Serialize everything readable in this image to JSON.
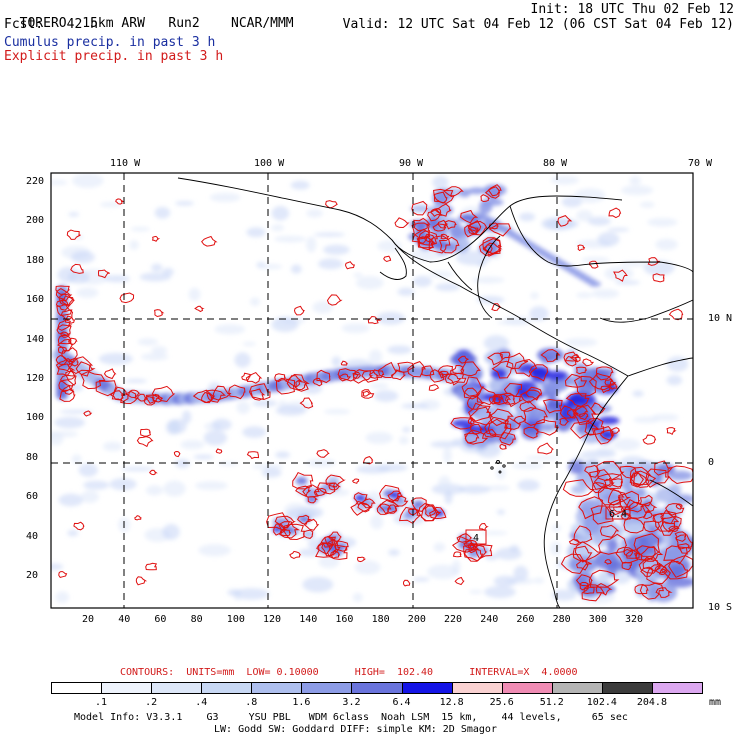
{
  "header": {
    "model": "TORERO",
    "resolution": "15km ARW",
    "run": "Run2",
    "org": "NCAR/MMM",
    "init": "Init: 18 UTC Thu 02 Feb 12",
    "fcst_label": "Fcst:",
    "fcst_value": "42 h",
    "valid": "Valid: 12 UTC Sat 04 Feb 12 (06 CST Sat 04 Feb 12)",
    "line_cumulus": "Cumulus precip. in past 3 h",
    "line_explicit": "Explicit precip. in past 3 h"
  },
  "map": {
    "lon_labels": [
      "110 W",
      "100 W",
      "90 W",
      "80 W",
      "70 W"
    ],
    "lat_labels": [
      "10 N",
      "0",
      "10 S"
    ],
    "grid_x_labels": [
      "20",
      "40",
      "60",
      "80",
      "100",
      "120",
      "140",
      "160",
      "180",
      "200",
      "220",
      "240",
      "260",
      "280",
      "300",
      "320"
    ],
    "grid_y_labels": [
      "220",
      "200",
      "180",
      "160",
      "140",
      "120",
      "100",
      "80",
      "60",
      "40",
      "20"
    ],
    "box_labels": [
      "4",
      "6.4"
    ]
  },
  "legend": {
    "contours_text": "CONTOURS:  UNITS=mm  LOW= 0.10000      HIGH=  102.40      INTERVAL=X  4.0000",
    "labels": [
      ".1",
      ".2",
      ".4",
      ".8",
      "1.6",
      "3.2",
      "6.4",
      "12.8",
      "25.6",
      "51.2",
      "102.4",
      "204.8"
    ],
    "unit": "mm",
    "colors": [
      "#ffffff",
      "#eef3fc",
      "#dde7f8",
      "#c8d8f4",
      "#aebfee",
      "#8d9ce6",
      "#6a74dc",
      "#1414e6",
      "#fad2d2",
      "#f08cb4",
      "#b4b4b4",
      "#3c3c3c",
      "#dca8f0"
    ]
  },
  "footer": {
    "line1": "Model Info: V3.3.1    G3     YSU PBL   WDM 6class  Noah LSM  15 km,    44 levels,     65 sec",
    "line2": "LW: Godd SW: Goddard DIFF: simple KM: 2D Smagor"
  }
}
